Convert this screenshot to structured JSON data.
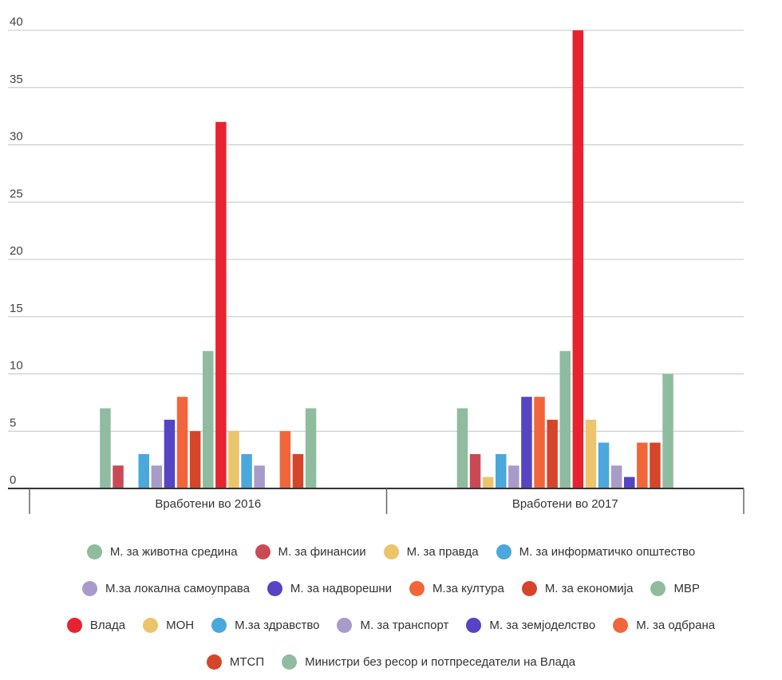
{
  "chart_data": {
    "type": "bar",
    "categories": [
      "Вработени во 2016",
      "Вработени во 2017"
    ],
    "ylim": [
      0,
      40
    ],
    "yticks": [
      0,
      5,
      10,
      15,
      20,
      25,
      30,
      35,
      40
    ],
    "grid": true,
    "legend": "bottom",
    "series": [
      {
        "name": "М. за животна средина",
        "color": "#8fbc9f",
        "values": [
          7,
          7
        ]
      },
      {
        "name": "М. за финансии",
        "color": "#c94a55",
        "values": [
          2,
          3
        ]
      },
      {
        "name": "М. за правда",
        "color": "#ecc46a",
        "values": [
          0,
          1
        ]
      },
      {
        "name": "М. за информатичко општество",
        "color": "#4aa8dd",
        "values": [
          3,
          3
        ]
      },
      {
        "name": "М.за локална самоуправа",
        "color": "#a99bc9",
        "values": [
          2,
          2
        ]
      },
      {
        "name": "М. за надворешни",
        "color": "#5544c4",
        "values": [
          6,
          8
        ]
      },
      {
        "name": "М.за култура",
        "color": "#f0663a",
        "values": [
          8,
          8
        ]
      },
      {
        "name": "М. за економија",
        "color": "#d5452a",
        "values": [
          5,
          6
        ]
      },
      {
        "name": "МВР",
        "color": "#8fbc9f",
        "values": [
          12,
          12
        ]
      },
      {
        "name": "Влада",
        "color": "#e8232f",
        "values": [
          32,
          40
        ]
      },
      {
        "name": "МОН",
        "color": "#ecc46a",
        "values": [
          5,
          6
        ]
      },
      {
        "name": "М.за здравство",
        "color": "#4aa8dd",
        "values": [
          3,
          4
        ]
      },
      {
        "name": "М. за транспорт",
        "color": "#a99bc9",
        "values": [
          2,
          2
        ]
      },
      {
        "name": "М. за земјоделство",
        "color": "#5544c4",
        "values": [
          0,
          1
        ]
      },
      {
        "name": "М. за одбрана",
        "color": "#f0663a",
        "values": [
          5,
          4
        ]
      },
      {
        "name": "МТСП",
        "color": "#d5452a",
        "values": [
          3,
          4
        ]
      },
      {
        "name": "Министри без ресор и потпреседатели на Влада",
        "color": "#8fbc9f",
        "values": [
          7,
          10
        ]
      }
    ]
  }
}
